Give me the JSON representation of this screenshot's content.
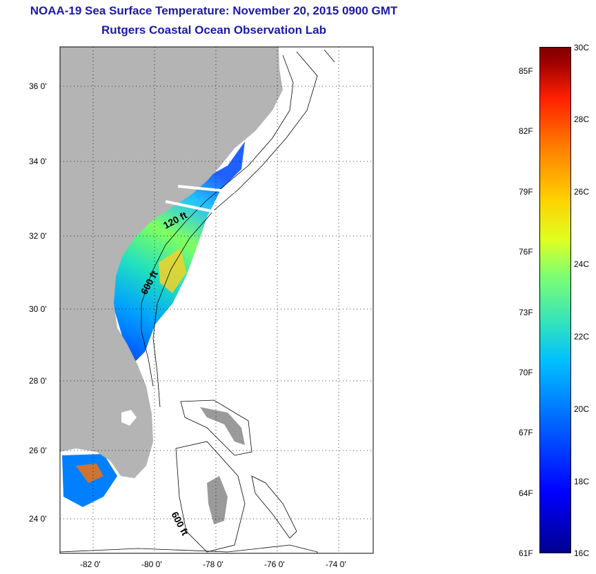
{
  "title": {
    "line1": "NOAA-19 Sea Surface Temperature:  November 20, 2015 0900 GMT",
    "line2": "Rutgers Coastal Ocean Observation Lab"
  },
  "axes": {
    "lat_labels": [
      "36 0'",
      "34 0'",
      "32 0'",
      "30 0'",
      "28 0'",
      "26 0'",
      "24 0'"
    ],
    "lon_labels": [
      "-82 0'",
      "-80 0'",
      "-78 0'",
      "-76 0'",
      "-74 0'"
    ]
  },
  "contours": {
    "label_120": "120 ft",
    "label_600a": "600 ft",
    "label_600b": "600 ft"
  },
  "colorbar": {
    "fahrenheit": [
      "85F",
      "82F",
      "79F",
      "76F",
      "73F",
      "70F",
      "67F",
      "64F",
      "61F"
    ],
    "celsius": [
      "30C",
      "28C",
      "26C",
      "24C",
      "22C",
      "20C",
      "18C",
      "16C"
    ]
  },
  "colors": {
    "land": "#b4b4b4",
    "title": "#1a1aa6"
  }
}
